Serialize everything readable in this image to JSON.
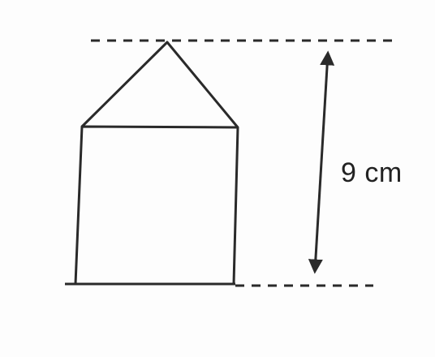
{
  "figure": {
    "shape": "house: square with triangular roof",
    "height_label": "9 cm",
    "stroke_color": "#2a2a2a",
    "background_color": "#fdfdfd"
  }
}
